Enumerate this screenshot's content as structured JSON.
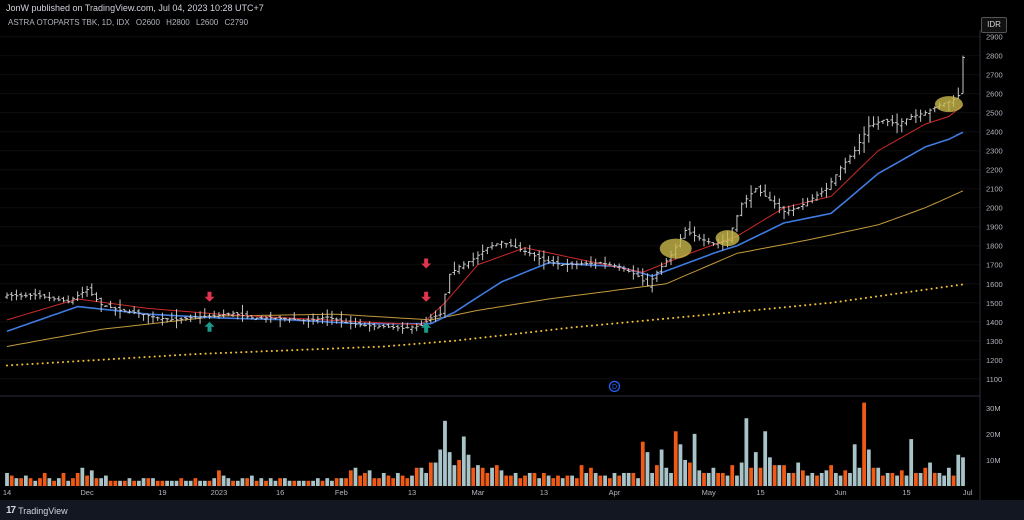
{
  "header": {
    "published": "JonW published on TradingView.com, Jul 04, 2023 10:28 UTC+7"
  },
  "legend": {
    "symbol": "ASTRA OTOPARTS TBK, 1D, IDX",
    "o_label": "O",
    "o": "2600",
    "h_label": "H",
    "h": "2800",
    "l_label": "L",
    "l": "2600",
    "c_label": "C",
    "c": "2790"
  },
  "currency": "IDR",
  "footer": {
    "brand": "TradingView"
  },
  "colors": {
    "background": "#000000",
    "bar": "#c8c8c8",
    "ema_fast": "#cc2a2a",
    "ema_mid": "#3f7be0",
    "sma_slow": "#c49a3c",
    "sma_long": "#f0c030",
    "vol_up": "#a8c4c8",
    "vol_down": "#f05a14",
    "arrow_down": "#e0344e",
    "arrow_up": "#1a9a8a",
    "highlight": "#c9b84a",
    "event_marker": "#2962ff"
  },
  "chart_data": {
    "type": "ohlc-bar",
    "price_axis": {
      "ticks": [
        1100,
        1200,
        1300,
        1400,
        1500,
        1600,
        1700,
        1800,
        1900,
        2000,
        2100,
        2200,
        2300,
        2400,
        2500,
        2600,
        2700,
        2800,
        2900
      ],
      "range": [
        1020,
        2935
      ]
    },
    "volume_axis": {
      "ticks": [
        10,
        20,
        30
      ],
      "tick_labels": [
        "10M",
        "20M",
        "30M"
      ],
      "range": [
        0,
        33
      ]
    },
    "x_labels": [
      "14",
      "Dec",
      "19",
      "2023",
      "16",
      "Feb",
      "13",
      "Mar",
      "13",
      "Apr",
      "May",
      "15",
      "Jun",
      "15",
      "Jul"
    ],
    "x_label_bar_index": [
      0,
      17,
      33,
      45,
      58,
      71,
      86,
      100,
      114,
      129,
      149,
      160,
      177,
      191,
      204
    ],
    "price_anchors": [
      [
        0,
        1540
      ],
      [
        3,
        1535
      ],
      [
        6,
        1540
      ],
      [
        10,
        1520
      ],
      [
        13,
        1505
      ],
      [
        17,
        1570
      ],
      [
        20,
        1490
      ],
      [
        24,
        1460
      ],
      [
        28,
        1445
      ],
      [
        32,
        1420
      ],
      [
        36,
        1410
      ],
      [
        40,
        1425
      ],
      [
        44,
        1430
      ],
      [
        48,
        1445
      ],
      [
        52,
        1420
      ],
      [
        56,
        1420
      ],
      [
        60,
        1415
      ],
      [
        64,
        1405
      ],
      [
        68,
        1425
      ],
      [
        72,
        1395
      ],
      [
        76,
        1380
      ],
      [
        80,
        1375
      ],
      [
        84,
        1365
      ],
      [
        88,
        1380
      ],
      [
        90,
        1420
      ],
      [
        92,
        1440
      ],
      [
        94,
        1650
      ],
      [
        96,
        1690
      ],
      [
        99,
        1730
      ],
      [
        102,
        1790
      ],
      [
        105,
        1820
      ],
      [
        108,
        1790
      ],
      [
        111,
        1760
      ],
      [
        114,
        1720
      ],
      [
        118,
        1700
      ],
      [
        122,
        1705
      ],
      [
        126,
        1710
      ],
      [
        130,
        1690
      ],
      [
        134,
        1640
      ],
      [
        136,
        1590
      ],
      [
        138,
        1660
      ],
      [
        141,
        1750
      ],
      [
        144,
        1880
      ],
      [
        147,
        1840
      ],
      [
        150,
        1810
      ],
      [
        153,
        1830
      ],
      [
        156,
        2020
      ],
      [
        159,
        2100
      ],
      [
        162,
        2040
      ],
      [
        165,
        1980
      ],
      [
        168,
        2000
      ],
      [
        171,
        2050
      ],
      [
        174,
        2100
      ],
      [
        177,
        2210
      ],
      [
        180,
        2300
      ],
      [
        183,
        2430
      ],
      [
        186,
        2460
      ],
      [
        189,
        2440
      ],
      [
        192,
        2480
      ],
      [
        195,
        2500
      ],
      [
        198,
        2540
      ],
      [
        201,
        2570
      ],
      [
        203,
        2610
      ],
      [
        204,
        2790
      ]
    ],
    "ohlc_last": {
      "open": 2600,
      "high": 2800,
      "low": 2600,
      "close": 2790
    },
    "ema_fast_anchors": [
      [
        0,
        1410
      ],
      [
        15,
        1520
      ],
      [
        30,
        1470
      ],
      [
        45,
        1440
      ],
      [
        60,
        1420
      ],
      [
        75,
        1400
      ],
      [
        88,
        1385
      ],
      [
        93,
        1500
      ],
      [
        100,
        1700
      ],
      [
        110,
        1790
      ],
      [
        125,
        1710
      ],
      [
        135,
        1660
      ],
      [
        145,
        1760
      ],
      [
        155,
        1850
      ],
      [
        165,
        2000
      ],
      [
        175,
        2060
      ],
      [
        185,
        2300
      ],
      [
        195,
        2440
      ],
      [
        200,
        2480
      ],
      [
        204,
        2560
      ]
    ],
    "ema_mid_anchors": [
      [
        0,
        1350
      ],
      [
        15,
        1480
      ],
      [
        30,
        1440
      ],
      [
        45,
        1420
      ],
      [
        60,
        1410
      ],
      [
        75,
        1390
      ],
      [
        90,
        1390
      ],
      [
        95,
        1450
      ],
      [
        105,
        1610
      ],
      [
        115,
        1710
      ],
      [
        130,
        1690
      ],
      [
        137,
        1640
      ],
      [
        150,
        1760
      ],
      [
        155,
        1800
      ],
      [
        165,
        1920
      ],
      [
        175,
        1970
      ],
      [
        185,
        2180
      ],
      [
        195,
        2320
      ],
      [
        200,
        2360
      ],
      [
        204,
        2410
      ]
    ],
    "sma_slow_anchors": [
      [
        0,
        1270
      ],
      [
        20,
        1360
      ],
      [
        45,
        1430
      ],
      [
        70,
        1440
      ],
      [
        90,
        1410
      ],
      [
        100,
        1460
      ],
      [
        115,
        1520
      ],
      [
        140,
        1600
      ],
      [
        155,
        1760
      ],
      [
        170,
        1830
      ],
      [
        185,
        1910
      ],
      [
        195,
        2000
      ],
      [
        204,
        2100
      ]
    ],
    "sma_long_anchors": [
      [
        0,
        1170
      ],
      [
        40,
        1230
      ],
      [
        80,
        1270
      ],
      [
        95,
        1300
      ],
      [
        120,
        1370
      ],
      [
        150,
        1440
      ],
      [
        175,
        1500
      ],
      [
        204,
        1600
      ]
    ],
    "volume_values": [
      5,
      4,
      3,
      3,
      4,
      3,
      2,
      3,
      5,
      3,
      2,
      3,
      5,
      2,
      3,
      5,
      7,
      4,
      6,
      3,
      3,
      4,
      2,
      2,
      2,
      2,
      3,
      2,
      2,
      3,
      3,
      3,
      2,
      2,
      2,
      2,
      2,
      3,
      2,
      2,
      3,
      2,
      2,
      2,
      3,
      6,
      4,
      3,
      2,
      2,
      3,
      3,
      4,
      2,
      3,
      2,
      3,
      2,
      3,
      3,
      2,
      2,
      2,
      2,
      2,
      2,
      3,
      2,
      3,
      2,
      3,
      3,
      3,
      6,
      7,
      4,
      5,
      6,
      3,
      3,
      5,
      4,
      3,
      5,
      4,
      3,
      4,
      7,
      7,
      5,
      9,
      9,
      14,
      25,
      13,
      8,
      10,
      19,
      12,
      7,
      8,
      7,
      5,
      7,
      8,
      6,
      4,
      4,
      5,
      3,
      4,
      5,
      5,
      3,
      5,
      4,
      3,
      4,
      3,
      4,
      4,
      3,
      8,
      5,
      7,
      5,
      4,
      4,
      3,
      5,
      4,
      5,
      5,
      5,
      3,
      17,
      13,
      5,
      8,
      14,
      7,
      5,
      21,
      16,
      10,
      9,
      20,
      6,
      5,
      5,
      7,
      5,
      5,
      4,
      8,
      4,
      9,
      26,
      7,
      13,
      7,
      21,
      11,
      8,
      8,
      8,
      5,
      5,
      9,
      6,
      4,
      5,
      4,
      5,
      6,
      8,
      5,
      4,
      6,
      5,
      16,
      7,
      32,
      14,
      7,
      7,
      4,
      5,
      5,
      4,
      6,
      4,
      18,
      5,
      5,
      7,
      9,
      5,
      5,
      4,
      7,
      4,
      12,
      11
    ],
    "volume_up_flags": [
      1,
      0,
      1,
      0,
      1,
      0,
      1,
      0,
      0,
      1,
      0,
      1,
      0,
      1,
      0,
      0,
      1,
      0,
      1,
      0,
      1,
      1,
      0,
      0,
      1,
      0,
      1,
      0,
      1,
      1,
      0,
      1,
      0,
      0,
      1,
      1,
      1,
      0,
      1,
      1,
      0,
      1,
      1,
      0,
      1,
      0,
      1,
      1,
      0,
      1,
      1,
      0,
      1,
      0,
      1,
      0,
      1,
      1,
      0,
      1,
      1,
      0,
      1,
      1,
      0,
      1,
      1,
      0,
      1,
      1,
      0,
      1,
      0,
      0,
      1,
      0,
      0,
      1,
      0,
      0,
      1,
      0,
      0,
      1,
      0,
      0,
      1,
      0,
      1,
      1,
      0,
      1,
      1,
      1,
      1,
      1,
      0,
      1,
      1,
      0,
      1,
      0,
      0,
      1,
      0,
      1,
      0,
      0,
      1,
      0,
      0,
      1,
      0,
      1,
      0,
      1,
      0,
      0,
      1,
      0,
      1,
      0,
      0,
      1,
      0,
      1,
      0,
      1,
      0,
      1,
      0,
      1,
      1,
      0,
      1,
      0,
      1,
      1,
      0,
      1,
      1,
      1,
      0,
      1,
      1,
      0,
      1,
      1,
      0,
      1,
      1,
      0,
      0,
      1,
      0,
      1,
      1,
      1,
      0,
      1,
      0,
      1,
      1,
      0,
      1,
      0,
      1,
      0,
      1,
      0,
      1,
      1,
      0,
      1,
      1,
      0,
      1,
      1,
      0,
      1,
      1,
      1,
      0,
      1,
      0,
      1,
      0,
      1,
      0,
      1,
      0,
      1,
      1,
      0,
      1,
      0,
      1,
      0,
      1,
      1,
      1,
      0,
      1,
      1,
      1
    ],
    "signals": [
      {
        "type": "down-arrow",
        "bar": 43,
        "price": 1505
      },
      {
        "type": "up-arrow",
        "bar": 43,
        "price": 1400
      },
      {
        "type": "down-arrow",
        "bar": 89,
        "price": 1680
      },
      {
        "type": "down-arrow",
        "bar": 89,
        "price": 1505
      },
      {
        "type": "up-arrow",
        "bar": 89,
        "price": 1395
      }
    ],
    "highlights": [
      {
        "bar": 142,
        "price": 1785,
        "rx": 16,
        "ry": 10
      },
      {
        "bar": 153,
        "price": 1840,
        "rx": 12,
        "ry": 8
      },
      {
        "bar": 200,
        "price": 2545,
        "rx": 14,
        "ry": 8
      }
    ],
    "event_marker": {
      "bar": 129,
      "price": 1060,
      "label": "D"
    }
  }
}
